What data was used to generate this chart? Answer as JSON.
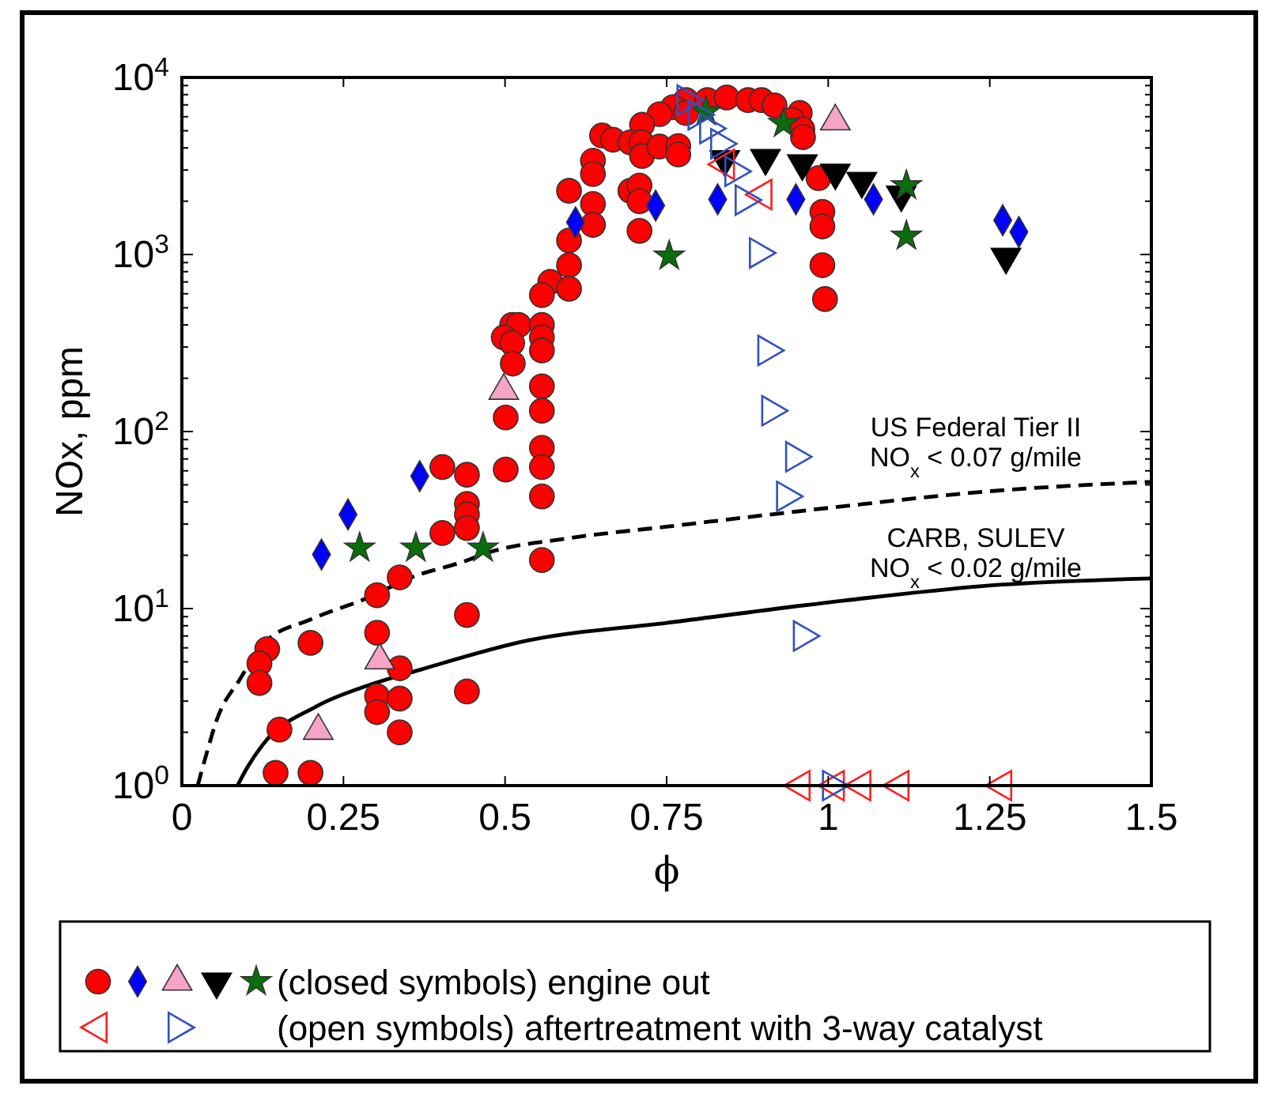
{
  "chart_data": {
    "type": "scatter",
    "xlabel": "ϕ",
    "ylabel": "NOx, ppm",
    "xlim": [
      0,
      1.5
    ],
    "ylim": [
      1,
      10000
    ],
    "log": "y",
    "grid": false,
    "xticks": [
      0,
      0.25,
      0.5,
      0.75,
      1,
      1.25,
      1.5
    ],
    "yticks": [
      {
        "value": 1,
        "label": "10$^{0}$"
      },
      {
        "value": 2,
        "label": null
      },
      {
        "value": 3,
        "label": null
      },
      {
        "value": 4,
        "label": null
      },
      {
        "value": 5,
        "label": null
      },
      {
        "value": 6,
        "label": null
      },
      {
        "value": 7,
        "label": null
      },
      {
        "value": 8,
        "label": null
      },
      {
        "value": 9,
        "label": null
      },
      {
        "value": 10,
        "label": "10$^{1}$"
      },
      {
        "value": 20,
        "label": null
      },
      {
        "value": 30,
        "label": null
      },
      {
        "value": 40,
        "label": null
      },
      {
        "value": 50,
        "label": null
      },
      {
        "value": 60,
        "label": null
      },
      {
        "value": 70,
        "label": null
      },
      {
        "value": 80,
        "label": null
      },
      {
        "value": 90,
        "label": null
      },
      {
        "value": 100,
        "label": "10$^{2}$"
      },
      {
        "value": 200,
        "label": null
      },
      {
        "value": 300,
        "label": null
      },
      {
        "value": 400,
        "label": null
      },
      {
        "value": 500,
        "label": null
      },
      {
        "value": 600,
        "label": null
      },
      {
        "value": 700,
        "label": null
      },
      {
        "value": 800,
        "label": null
      },
      {
        "value": 900,
        "label": null
      },
      {
        "value": 1000,
        "label": "10$^{3}$"
      },
      {
        "value": 2000,
        "label": null
      },
      {
        "value": 3000,
        "label": null
      },
      {
        "value": 4000,
        "label": null
      },
      {
        "value": 5000,
        "label": null
      },
      {
        "value": 6000,
        "label": null
      },
      {
        "value": 7000,
        "label": null
      },
      {
        "value": 8000,
        "label": null
      },
      {
        "value": 9000,
        "label": null
      },
      {
        "value": 10000,
        "label": "10$^{4}$"
      }
    ],
    "series": [
      {
        "type": "line",
        "color": "#000000",
        "line_style": "dashed",
        "x": [
          0.0245,
          0.04,
          0.053,
          0.09,
          0.127,
          0.2,
          0.29,
          0.355,
          0.437,
          0.47,
          0.6,
          0.75,
          1.0,
          1.25,
          1.5
        ],
        "values": [
          1,
          1.6,
          2.3,
          4,
          6.4,
          8.7,
          11.6,
          15,
          18.5,
          20.5,
          25,
          29,
          37,
          46,
          52
        ]
      },
      {
        "type": "line",
        "color": "#000000",
        "line_style": "solid",
        "x": [
          0.086,
          0.102,
          0.125,
          0.208,
          0.29,
          0.372,
          0.535,
          0.75,
          1.025,
          1.238,
          1.5
        ],
        "values": [
          1,
          1.28,
          1.7,
          2.8,
          3.7,
          4.55,
          6.6,
          8.3,
          11.1,
          13.4,
          14.8
        ]
      },
      {
        "color": "#ff0000",
        "marker": "circle",
        "x": [
          0.78,
          0.76,
          0.739,
          0.78,
          0.712,
          0.65,
          0.667,
          0.694,
          0.711,
          0.712,
          0.739,
          0.768,
          0.768,
          0.636,
          0.636,
          0.599,
          0.694,
          0.708,
          0.708,
          0.636,
          0.636,
          0.708,
          0.599,
          0.599,
          0.57,
          0.599,
          0.557,
          0.511,
          0.521,
          0.498,
          0.511,
          0.557,
          0.557,
          0.557,
          0.512,
          0.557,
          0.557,
          0.501,
          0.813,
          0.843,
          0.876,
          0.897,
          0.917,
          0.956,
          0.944,
          0.96,
          0.961,
          0.985,
          0.991,
          0.991,
          0.991,
          0.995,
          0.403,
          0.441,
          0.441,
          0.441,
          0.441,
          0.403,
          0.557,
          0.557,
          0.501,
          0.557,
          0.557,
          0.337,
          0.302,
          0.302,
          0.337,
          0.302,
          0.302,
          0.337,
          0.337,
          0.441,
          0.441,
          0.132,
          0.12,
          0.12,
          0.199,
          0.151,
          0.145,
          0.199
        ],
        "values": [
          7450,
          6800,
          6200,
          6300,
          5400,
          4700,
          4450,
          4300,
          4300,
          3600,
          4070,
          4100,
          3670,
          3390,
          2850,
          2290,
          2290,
          2450,
          2000,
          1930,
          1470,
          1360,
          1200,
          870,
          700,
          640,
          590,
          400,
          400,
          340,
          316,
          400,
          340,
          287,
          242,
          180,
          131,
          120,
          7450,
          7700,
          7450,
          7450,
          6950,
          6300,
          5750,
          5100,
          4600,
          2700,
          1740,
          1440,
          870,
          560,
          63,
          57,
          39,
          34,
          28.5,
          26.7,
          81,
          63,
          61,
          43,
          18.8,
          15,
          11.9,
          7.3,
          4.6,
          3.2,
          2.6,
          3.1,
          2,
          9.2,
          3.4,
          5.9,
          4.9,
          3.8,
          6.4,
          2.07,
          1.18,
          1.18
        ]
      },
      {
        "color": "#0000ff",
        "marker": "diamond",
        "x": [
          0.609,
          0.733,
          0.829,
          0.95,
          1.07,
          1.27,
          1.295,
          0.216,
          0.257,
          0.368
        ],
        "values": [
          1520,
          1890,
          2050,
          2050,
          2050,
          1560,
          1340,
          20.2,
          34,
          56
        ]
      },
      {
        "color": "#f5a3c7",
        "marker": "triangle",
        "x": [
          0.498,
          1.011,
          0.306,
          0.211
        ],
        "values": [
          170,
          5650,
          5.1,
          2.04
        ]
      },
      {
        "color": "#000000",
        "marker": "triangle-down",
        "x": [
          0.84,
          0.903,
          0.96,
          1.011,
          1.052,
          1.113,
          1.275
        ],
        "values": [
          3450,
          3500,
          3270,
          2900,
          2600,
          2180,
          970
        ]
      },
      {
        "color": "#0a6e0a",
        "marker": "star",
        "x": [
          0.754,
          0.811,
          0.931,
          1.121,
          1.121,
          0.275,
          0.362,
          0.466
        ],
        "values": [
          980,
          6400,
          5500,
          2450,
          1270,
          22,
          22,
          22
        ]
      },
      {
        "color": "#ff2020",
        "marker": "triangle-left-open",
        "x": [
          0.841,
          0.899,
          0.958,
          1.011,
          1.052,
          1.111,
          1.27
        ],
        "values": [
          3230,
          2180,
          1,
          1,
          1,
          1,
          1
        ]
      },
      {
        "color": "#3050c0",
        "marker": "triangle-right-open",
        "x": [
          0.78,
          0.797,
          0.815,
          0.832,
          0.854,
          0.87,
          0.892,
          0.905,
          0.911,
          0.948,
          0.934,
          0.96,
          1.005
        ],
        "values": [
          7450,
          6150,
          5150,
          4220,
          2950,
          2030,
          1020,
          287,
          131,
          72,
          43,
          7,
          1
        ]
      }
    ],
    "annotations": [
      "US Federal Tier II\nNO$_{x}$ < 0.07 g/mile",
      "CARB, SULEV\nNO$_{x}$ < 0.02 g/mile",
      "(closed symbols) engine out",
      "(open symbols) aftertreatment with 3-way catalyst"
    ]
  }
}
